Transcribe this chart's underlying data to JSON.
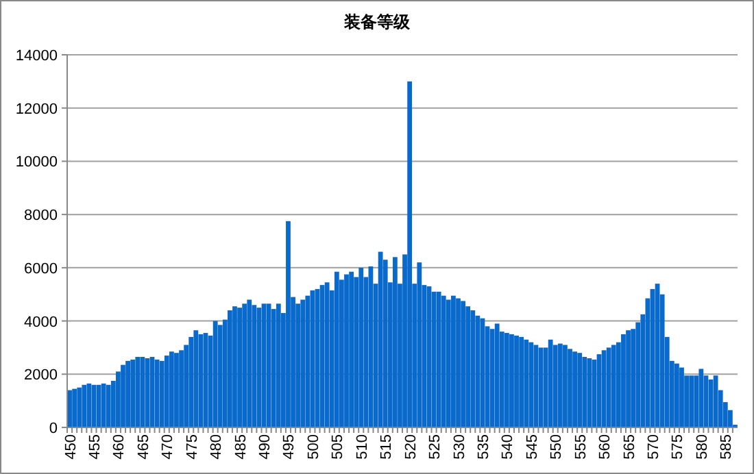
{
  "chart_data": {
    "type": "bar",
    "title": "装备等级",
    "categories": [
      "450",
      null,
      null,
      null,
      null,
      "455",
      null,
      null,
      null,
      null,
      "460",
      null,
      null,
      null,
      null,
      "465",
      null,
      null,
      null,
      null,
      "470",
      null,
      null,
      null,
      null,
      "475",
      null,
      null,
      null,
      null,
      "480",
      null,
      null,
      null,
      null,
      "485",
      null,
      null,
      null,
      null,
      "490",
      null,
      null,
      null,
      null,
      "495",
      null,
      null,
      null,
      null,
      "500",
      null,
      null,
      null,
      null,
      "505",
      null,
      null,
      null,
      null,
      "510",
      null,
      null,
      null,
      null,
      "515",
      null,
      null,
      null,
      null,
      "520",
      null,
      null,
      null,
      null,
      "525",
      null,
      null,
      null,
      null,
      "530",
      null,
      null,
      null,
      null,
      "535",
      null,
      null,
      null,
      null,
      "540",
      null,
      null,
      null,
      null,
      "545",
      null,
      null,
      null,
      null,
      "550",
      null,
      null,
      null,
      null,
      "555",
      null,
      null,
      null,
      null,
      "560",
      null,
      null,
      null,
      null,
      "565",
      null,
      null,
      null,
      null,
      "570",
      null,
      null,
      null,
      null,
      "575",
      null,
      null,
      null,
      null,
      "580",
      null,
      null,
      null,
      null,
      "585",
      null,
      null
    ],
    "values": [
      1400,
      1450,
      1500,
      1600,
      1650,
      1600,
      1600,
      1650,
      1600,
      1750,
      2100,
      2350,
      2500,
      2550,
      2650,
      2650,
      2600,
      2650,
      2550,
      2500,
      2700,
      2850,
      2800,
      2900,
      3100,
      3400,
      3650,
      3500,
      3550,
      3450,
      4000,
      3850,
      4050,
      4400,
      4550,
      4500,
      4650,
      4800,
      4600,
      4500,
      4650,
      4650,
      4450,
      4650,
      4300,
      7750,
      4900,
      4650,
      4800,
      4950,
      5150,
      5200,
      5350,
      5450,
      5150,
      5850,
      5550,
      5750,
      5850,
      5650,
      6000,
      5650,
      6050,
      5400,
      6600,
      6300,
      5450,
      6400,
      5400,
      6500,
      13000,
      5400,
      6200,
      5350,
      5300,
      5100,
      5100,
      4950,
      4800,
      4950,
      4850,
      4750,
      4550,
      4400,
      4200,
      4100,
      3800,
      3700,
      3900,
      3600,
      3550,
      3500,
      3450,
      3400,
      3300,
      3200,
      3100,
      3000,
      3000,
      3300,
      3100,
      3150,
      3100,
      2950,
      2850,
      2800,
      2650,
      2600,
      2550,
      2750,
      2900,
      3000,
      3100,
      3200,
      3500,
      3650,
      3700,
      3950,
      4250,
      4850,
      5200,
      5400,
      5000,
      3400,
      2500,
      2400,
      2250,
      1950,
      1950,
      1950,
      2200,
      1950,
      1800,
      1950,
      1400,
      950,
      650,
      100
    ],
    "color": "#0a6acb",
    "ylim": [
      0,
      14000
    ],
    "yticks": [
      0,
      2000,
      4000,
      6000,
      8000,
      10000,
      12000,
      14000
    ],
    "grid": "y"
  }
}
